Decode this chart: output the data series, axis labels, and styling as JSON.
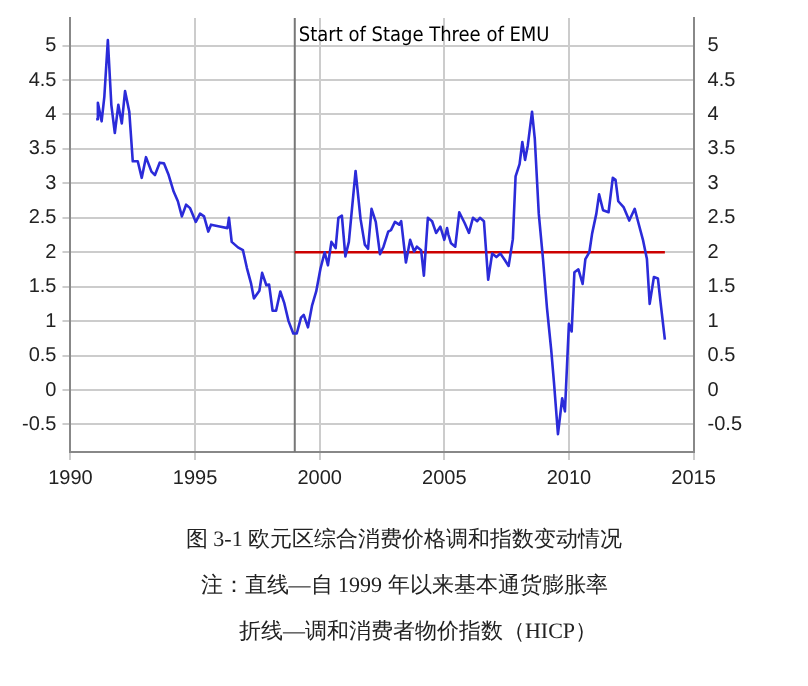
{
  "chart_data": {
    "type": "line",
    "title": "图 3-1 欧元区综合消费价格调和指数变动情况",
    "annotations": [
      "注：直线—自 1999 年以来基本通货膨胀率",
      "折线—调和消费者物价指数（HICP）"
    ],
    "series": [
      {
        "color": "#2b2bd9",
        "x": [
          1991.03,
          1991.1,
          1991.25,
          1991.36,
          1991.5,
          1991.64,
          1991.78,
          1991.92,
          1992.06,
          1992.19,
          1992.36,
          1992.5,
          1992.7,
          1992.86,
          1993.03,
          1993.25,
          1993.39,
          1993.58,
          1993.75,
          1993.94,
          1994.14,
          1994.31,
          1994.47,
          1994.64,
          1994.8,
          1995.03,
          1995.2,
          1995.36,
          1995.53,
          1995.64,
          1996.03,
          1996.3,
          1996.36,
          1996.47,
          1996.72,
          1996.92,
          1997.08,
          1997.25,
          1997.36,
          1997.58,
          1997.69,
          1997.86,
          1997.97,
          1998.11,
          1998.25,
          1998.42,
          1998.58,
          1998.75,
          1998.94,
          1999.08,
          1999.25,
          1999.36,
          1999.53,
          1999.69,
          1999.86,
          2000.03,
          2000.2,
          2000.33,
          2000.47,
          2000.64,
          2000.75,
          2000.89,
          2001.03,
          2001.17,
          2001.44,
          2001.64,
          2001.81,
          2001.94,
          2002.08,
          2002.25,
          2002.42,
          2002.56,
          2002.75,
          2002.86,
          2003.02,
          2003.19,
          2003.27,
          2003.46,
          2003.63,
          2003.79,
          2003.9,
          2004.07,
          2004.18,
          2004.34,
          2004.51,
          2004.67,
          2004.84,
          2005,
          2005.11,
          2005.16,
          2005.27,
          2005.44,
          2005.6,
          2005.82,
          2005.99,
          2006.15,
          2006.32,
          2006.43,
          2006.59,
          2006.76,
          2006.92,
          2007.09,
          2007.25,
          2007.42,
          2007.58,
          2007.75,
          2007.86,
          2008.02,
          2008.13,
          2008.24,
          2008.35,
          2008.52,
          2008.63,
          2008.79,
          2008.96,
          2009.12,
          2009.29,
          2009.4,
          2009.56,
          2009.73,
          2009.84,
          2010,
          2010.11,
          2010.22,
          2010.38,
          2010.55,
          2010.66,
          2010.82,
          2010.93,
          2011.1,
          2011.21,
          2011.37,
          2011.59,
          2011.76,
          2011.87,
          2011.98,
          2012.2,
          2012.42,
          2012.64,
          2012.8,
          2012.97,
          2013.13,
          2013.24,
          2013.41,
          2013.57,
          2013.68,
          2013.85
        ],
        "values": [
          3.93,
          4.17,
          3.9,
          4.26,
          5.08,
          4.14,
          3.73,
          4.14,
          3.87,
          4.34,
          4.04,
          3.32,
          3.32,
          3.08,
          3.38,
          3.17,
          3.12,
          3.3,
          3.29,
          3.12,
          2.88,
          2.74,
          2.52,
          2.69,
          2.64,
          2.44,
          2.56,
          2.52,
          2.3,
          2.4,
          2.37,
          2.35,
          2.5,
          2.15,
          2.07,
          2.03,
          1.77,
          1.54,
          1.33,
          1.44,
          1.7,
          1.52,
          1.53,
          1.15,
          1.15,
          1.43,
          1.26,
          1.0,
          0.82,
          0.82,
          1.05,
          1.09,
          0.91,
          1.22,
          1.43,
          1.76,
          2.0,
          1.81,
          2.15,
          2.06,
          2.5,
          2.53,
          1.94,
          2.15,
          3.18,
          2.48,
          2.11,
          2.05,
          2.63,
          2.44,
          1.97,
          2.08,
          2.3,
          2.32,
          2.44,
          2.4,
          2.45,
          1.85,
          2.18,
          2.01,
          2.08,
          2.03,
          1.66,
          2.5,
          2.45,
          2.28,
          2.37,
          2.18,
          2.35,
          2.26,
          2.13,
          2.08,
          2.58,
          2.42,
          2.28,
          2.5,
          2.45,
          2.5,
          2.45,
          1.6,
          1.98,
          1.93,
          1.98,
          1.89,
          1.8,
          2.19,
          3.1,
          3.28,
          3.6,
          3.34,
          3.55,
          4.04,
          3.65,
          2.56,
          1.9,
          1.19,
          0.58,
          0.11,
          -0.64,
          -0.12,
          -0.31,
          0.96,
          0.85,
          1.71,
          1.75,
          1.54,
          1.9,
          2.0,
          2.27,
          2.56,
          2.84,
          2.61,
          2.58,
          3.08,
          3.05,
          2.74,
          2.65,
          2.46,
          2.63,
          2.41,
          2.18,
          1.9,
          1.25,
          1.64,
          1.62,
          1.26,
          0.73
        ]
      },
      {
        "color": "#cc0000",
        "x": [
          1999,
          2013.85
        ],
        "values": [
          2,
          2
        ]
      }
    ],
    "xlim": [
      1990,
      2015
    ],
    "xticks": [
      1990,
      1995,
      2000,
      2005,
      2010,
      2015
    ],
    "ylim": [
      -0.9,
      5.4
    ],
    "yticks": [
      -0.5,
      0,
      0.5,
      1,
      1.5,
      2,
      2.5,
      3,
      3.5,
      4,
      4.5,
      5
    ],
    "y2lim": [
      -0.9,
      5.4
    ],
    "y2ticks": [
      -0.5,
      0,
      0.5,
      1,
      1.5,
      2,
      2.5,
      3,
      3.5,
      4,
      4.5,
      5
    ],
    "ref_lines": [
      {
        "axis": "x",
        "value": 1999,
        "label": "Start of Stage Three of EMU",
        "color": "#777777"
      }
    ],
    "grid": true,
    "legend": false,
    "marker": "none",
    "line_style": "solid"
  }
}
